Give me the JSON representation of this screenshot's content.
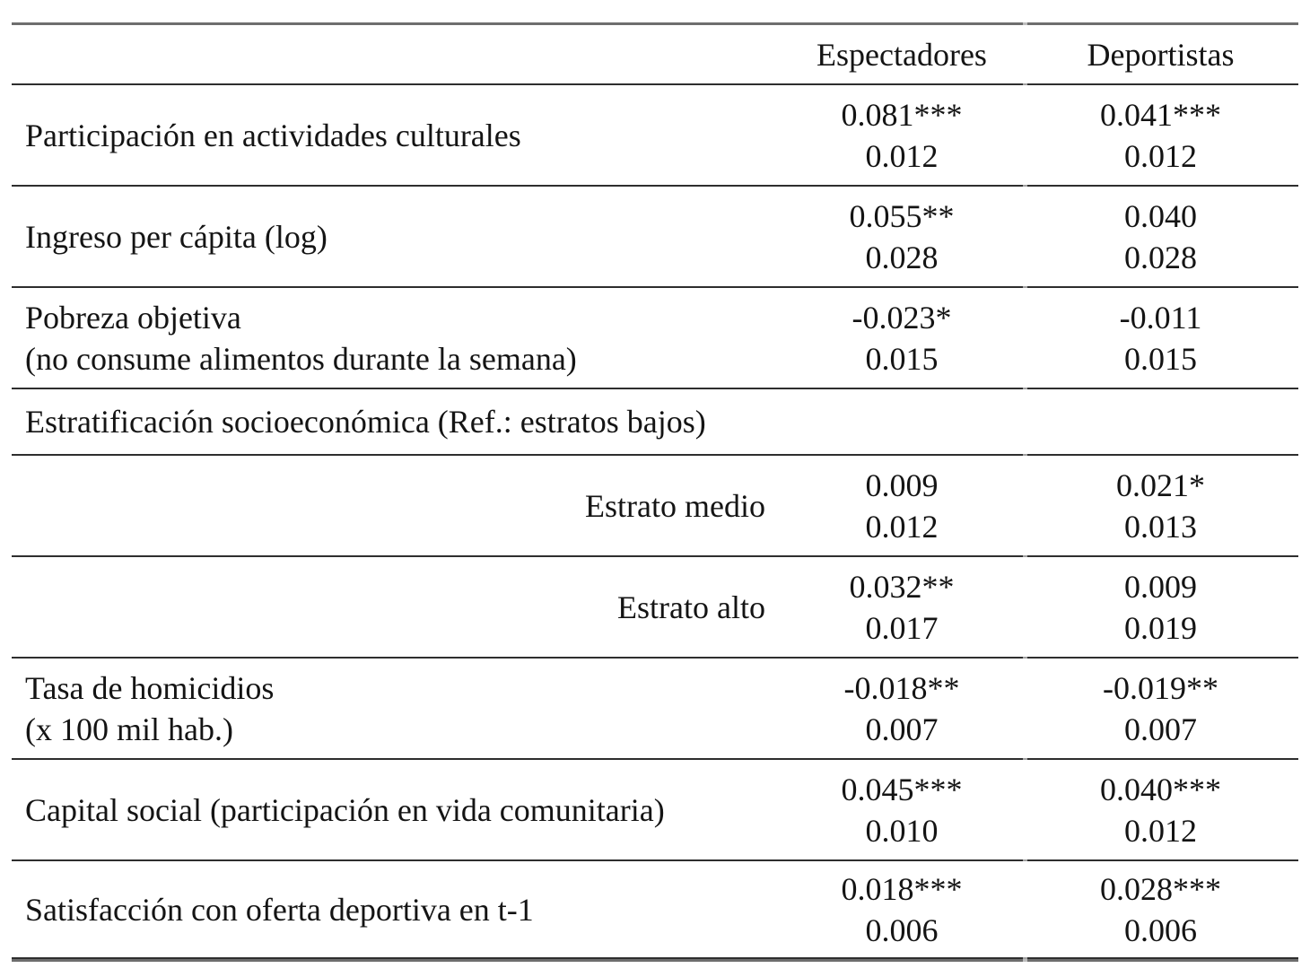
{
  "page": {
    "background": "#ffffff",
    "text_color": "#141414",
    "outer_rule_color": "#6e6e6e",
    "inner_rule_color": "#2e2e2e"
  },
  "table": {
    "header": {
      "espectadores": "Espectadores",
      "deportistas": "Deportistas"
    },
    "rows": [
      {
        "id": "participacion-actividades-culturales",
        "type": "data",
        "label_align": "left",
        "label_lines": [
          "Participación en actividades culturales"
        ],
        "espectadores": {
          "coef": "0.081***",
          "se": "0.012"
        },
        "deportistas": {
          "coef": "0.041***",
          "se": "0.012"
        }
      },
      {
        "id": "ingreso-per-capita-log",
        "type": "data",
        "label_align": "left",
        "label_lines": [
          "Ingreso per cápita (log)"
        ],
        "espectadores": {
          "coef": "0.055**",
          "se": "0.028"
        },
        "deportistas": {
          "coef": "0.040",
          "se": "0.028"
        }
      },
      {
        "id": "pobreza-objetiva",
        "type": "data",
        "label_align": "left",
        "label_lines": [
          "Pobreza objetiva",
          "(no consume alimentos durante la semana)"
        ],
        "espectadores": {
          "coef": "-0.023*",
          "se": "0.015"
        },
        "deportistas": {
          "coef": "-0.011",
          "se": "0.015"
        }
      },
      {
        "id": "estratificacion-socioeconomica",
        "type": "section",
        "label_align": "left",
        "label_lines": [
          "Estratificación socioeconómica (Ref.: estratos bajos)"
        ]
      },
      {
        "id": "estrato-medio",
        "type": "data",
        "label_align": "right",
        "label_lines": [
          "Estrato medio"
        ],
        "espectadores": {
          "coef": "0.009",
          "se": "0.012"
        },
        "deportistas": {
          "coef": "0.021*",
          "se": "0.013"
        }
      },
      {
        "id": "estrato-alto",
        "type": "data",
        "label_align": "right",
        "label_lines": [
          "Estrato alto"
        ],
        "espectadores": {
          "coef": "0.032**",
          "se": "0.017"
        },
        "deportistas": {
          "coef": "0.009",
          "se": "0.019"
        }
      },
      {
        "id": "tasa-de-homicidios",
        "type": "data",
        "label_align": "left",
        "label_lines": [
          "Tasa de homicidios",
          "(x 100 mil hab.)"
        ],
        "espectadores": {
          "coef": "-0.018**",
          "se": "0.007"
        },
        "deportistas": {
          "coef": "-0.019**",
          "se": "0.007"
        }
      },
      {
        "id": "capital-social",
        "type": "data",
        "label_align": "left",
        "label_lines": [
          "Capital social (participación en vida comunitaria)"
        ],
        "espectadores": {
          "coef": "0.045***",
          "se": "0.010"
        },
        "deportistas": {
          "coef": "0.040***",
          "se": "0.012"
        }
      },
      {
        "id": "satisfaccion-oferta-deportiva",
        "type": "data",
        "label_align": "left",
        "label_lines": [
          "Satisfacción con oferta deportiva en t-1"
        ],
        "espectadores": {
          "coef": "0.018***",
          "se": "0.006"
        },
        "deportistas": {
          "coef": "0.028***",
          "se": "0.006"
        }
      }
    ]
  }
}
